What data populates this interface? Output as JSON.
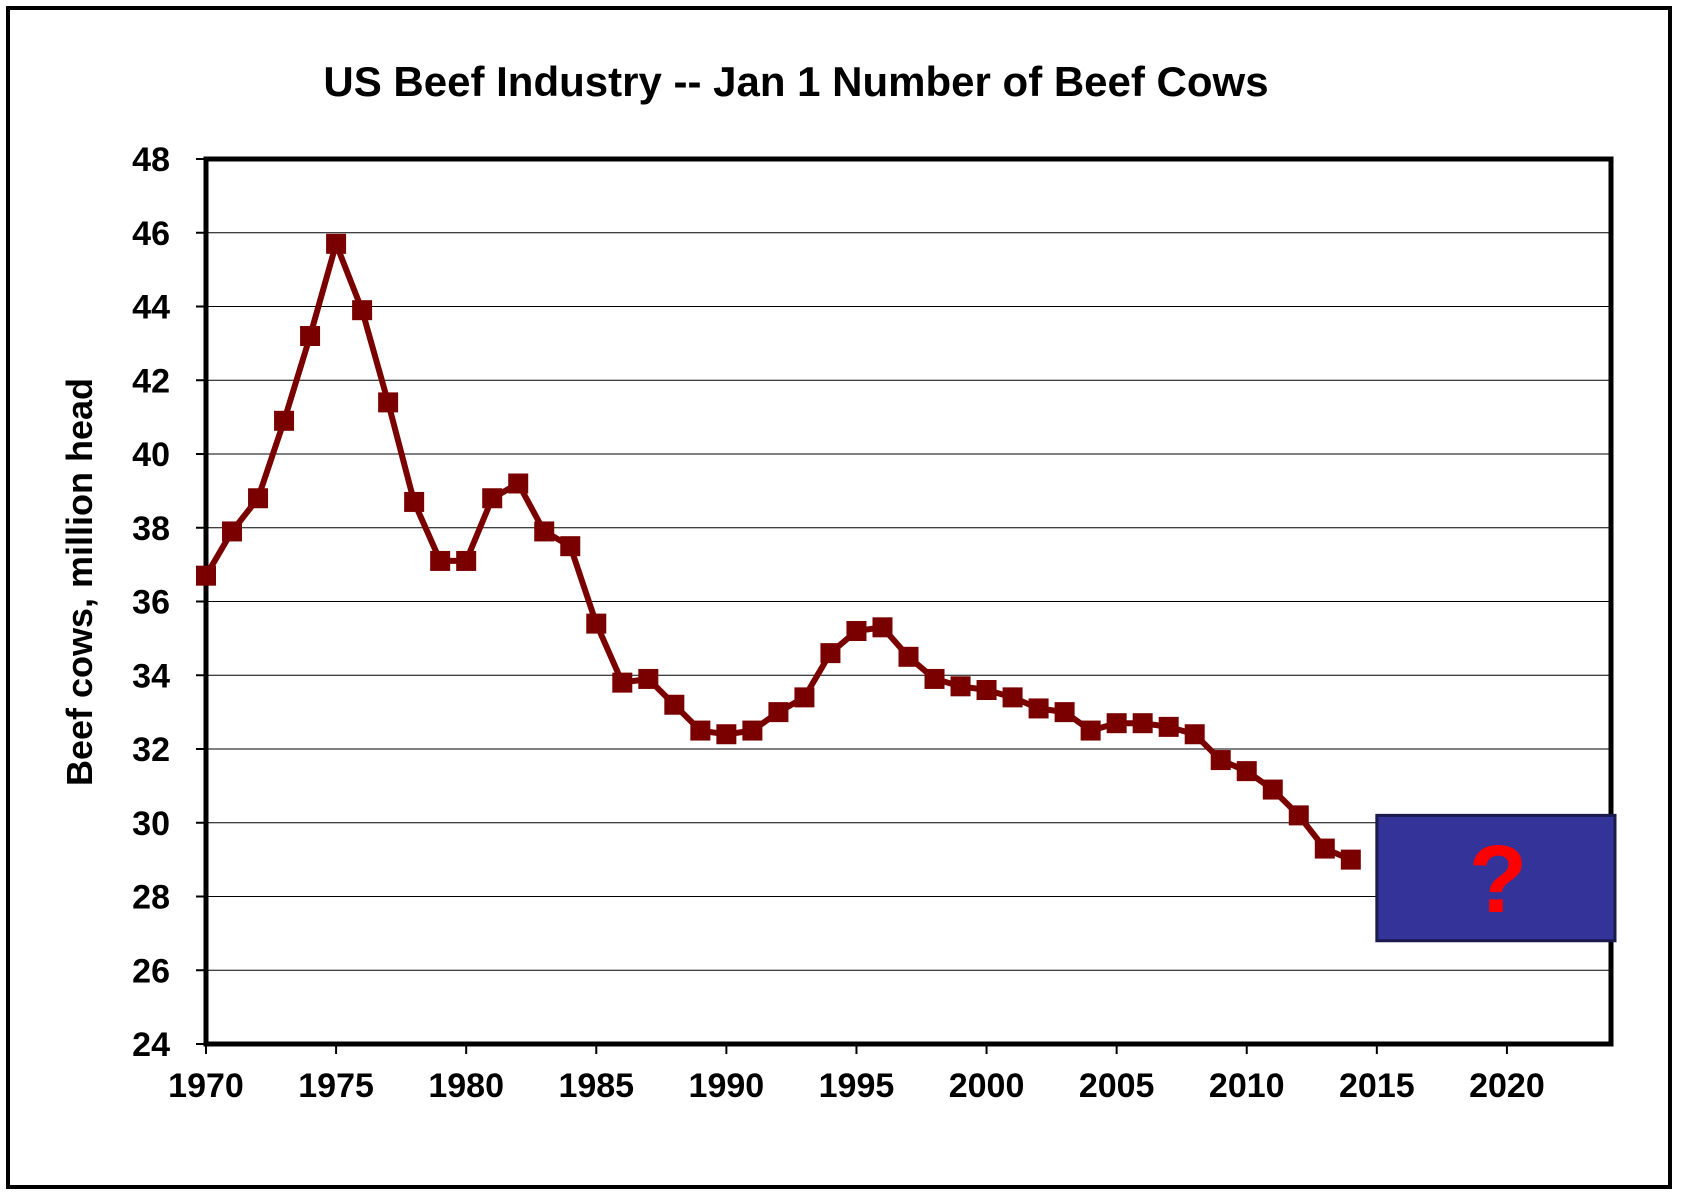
{
  "chart_data": {
    "type": "line",
    "title": "US Beef Industry -- Jan 1 Number of Beef Cows",
    "xlabel": "",
    "ylabel": "Beef cows, million head",
    "xlim": [
      1970,
      2024
    ],
    "ylim": [
      24,
      48
    ],
    "x_ticks": [
      "1970",
      "1975",
      "1980",
      "1985",
      "1990",
      "1995",
      "2000",
      "2005",
      "2010",
      "2015",
      "2020"
    ],
    "y_ticks": [
      "24",
      "26",
      "28",
      "30",
      "32",
      "34",
      "36",
      "38",
      "40",
      "42",
      "44",
      "46",
      "48"
    ],
    "grid": true,
    "legend": "none",
    "series": [
      {
        "color": "#7a0000",
        "marker": "square",
        "x": [
          1970,
          1971,
          1972,
          1973,
          1974,
          1975,
          1976,
          1977,
          1978,
          1979,
          1980,
          1981,
          1982,
          1983,
          1984,
          1985,
          1986,
          1987,
          1988,
          1989,
          1990,
          1991,
          1992,
          1993,
          1994,
          1995,
          1996,
          1997,
          1998,
          1999,
          2000,
          2001,
          2002,
          2003,
          2004,
          2005,
          2006,
          2007,
          2008,
          2009,
          2010,
          2011,
          2012,
          2013,
          2014
        ],
        "y": [
          36.7,
          37.9,
          38.8,
          40.9,
          43.2,
          45.7,
          43.9,
          41.4,
          38.7,
          37.1,
          37.1,
          38.8,
          39.2,
          37.9,
          37.5,
          35.4,
          33.8,
          33.9,
          33.2,
          32.5,
          32.4,
          32.5,
          33.0,
          33.4,
          34.6,
          35.2,
          35.3,
          34.5,
          33.9,
          33.7,
          33.6,
          33.4,
          33.1,
          33.0,
          32.5,
          32.7,
          32.7,
          32.6,
          32.4,
          31.7,
          31.4,
          30.9,
          30.2,
          29.3,
          29.0
        ]
      }
    ],
    "annotations": [
      {
        "text": "?",
        "box_color": "#333399",
        "text_color": "#ff0000",
        "x_range": [
          2015,
          2024
        ],
        "y_range": [
          26.8,
          30.2
        ]
      }
    ]
  }
}
